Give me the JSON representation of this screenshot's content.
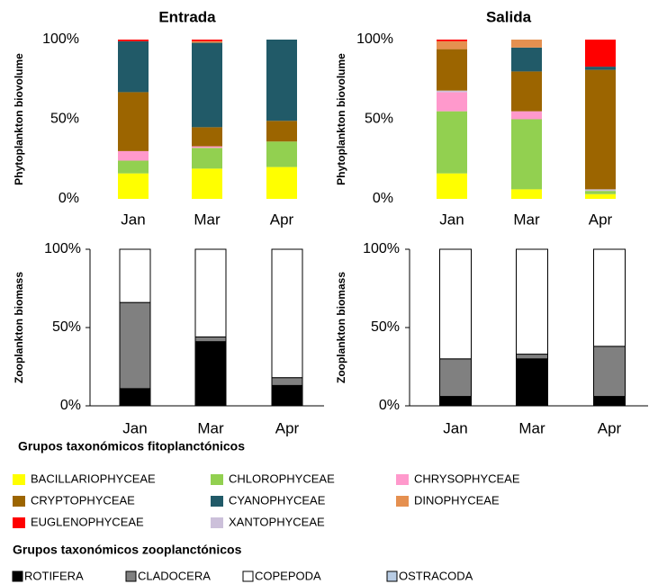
{
  "chart_data": [
    {
      "type": "stacked_bar",
      "title": "Entrada",
      "title_color": "#ff0000",
      "y_label": "Phytoplankton biovolume",
      "categories": [
        "Jan",
        "Mar",
        "Apr"
      ],
      "ylim": [
        0,
        100
      ],
      "yticks": [
        {
          "value": 0,
          "label": "0%"
        },
        {
          "value": 50,
          "label": "50%"
        },
        {
          "value": 100,
          "label": "100%"
        }
      ],
      "series": [
        {
          "name": "BACILLARIOPHYCEAE",
          "color": "#ffff00",
          "values": [
            16,
            19,
            20
          ]
        },
        {
          "name": "CHLOROPHYCEAE",
          "color": "#92d050",
          "values": [
            8,
            13,
            16
          ]
        },
        {
          "name": "CHRYSOPHYCEAE",
          "color": "#ff99cc",
          "values": [
            6,
            1,
            0
          ]
        },
        {
          "name": "CRYPTOPHYCEAE",
          "color": "#9c6500",
          "values": [
            37,
            12,
            13
          ]
        },
        {
          "name": "CYANOPHYCEAE",
          "color": "#215a68",
          "values": [
            32,
            53,
            51
          ]
        },
        {
          "name": "DINOPHYCEAE",
          "color": "#e59050",
          "values": [
            0,
            1,
            0
          ]
        },
        {
          "name": "EUGLENOPHYCEAE",
          "color": "#ff0000",
          "values": [
            1,
            1,
            0
          ]
        },
        {
          "name": "XANTOPHYCEAE",
          "color": "#ccc0da",
          "values": [
            0,
            0,
            0
          ]
        }
      ]
    },
    {
      "type": "stacked_bar",
      "title": "Salida",
      "title_color": "#33cccc",
      "y_label": "Phytoplankton biovolume",
      "categories": [
        "Jan",
        "Mar",
        "Apr"
      ],
      "ylim": [
        0,
        100
      ],
      "yticks": [
        {
          "value": 0,
          "label": "0%"
        },
        {
          "value": 50,
          "label": "50%"
        },
        {
          "value": 100,
          "label": "100%"
        }
      ],
      "series": [
        {
          "name": "BACILLARIOPHYCEAE",
          "color": "#ffff00",
          "values": [
            16,
            6,
            3
          ]
        },
        {
          "name": "CHLOROPHYCEAE",
          "color": "#92d050",
          "values": [
            39,
            44,
            2
          ]
        },
        {
          "name": "CHRYSOPHYCEAE",
          "color": "#ff99cc",
          "values": [
            12,
            5,
            0
          ]
        },
        {
          "name": "XANTOPHYCEAE",
          "color": "#ccc0da",
          "values": [
            1,
            0,
            1
          ]
        },
        {
          "name": "CRYPTOPHYCEAE",
          "color": "#9c6500",
          "values": [
            26,
            25,
            75
          ]
        },
        {
          "name": "CYANOPHYCEAE",
          "color": "#215a68",
          "values": [
            0,
            15,
            2
          ]
        },
        {
          "name": "DINOPHYCEAE",
          "color": "#e59050",
          "values": [
            5,
            5,
            0
          ]
        },
        {
          "name": "EUGLENOPHYCEAE",
          "color": "#ff0000",
          "values": [
            1,
            0,
            17
          ]
        }
      ]
    },
    {
      "type": "stacked_bar",
      "y_label": "Zooplankton biomass",
      "categories": [
        "Jan",
        "Mar",
        "Apr"
      ],
      "ylim": [
        0,
        100
      ],
      "yticks": [
        {
          "value": 0,
          "label": "0%"
        },
        {
          "value": 50,
          "label": "50%"
        },
        {
          "value": 100,
          "label": "100%"
        }
      ],
      "series": [
        {
          "name": "ROTIFERA",
          "color": "#000000",
          "values": [
            11,
            41,
            13
          ]
        },
        {
          "name": "CLADOCERA",
          "color": "#808080",
          "values": [
            55,
            3,
            5
          ]
        },
        {
          "name": "COPEPODA",
          "color": "#ffffff",
          "values": [
            34,
            56,
            82
          ]
        },
        {
          "name": "OSTRACODA",
          "color": "#b8cce4",
          "values": [
            0,
            0,
            0
          ]
        }
      ]
    },
    {
      "type": "stacked_bar",
      "y_label": "Zooplankton biomass",
      "categories": [
        "Jan",
        "Mar",
        "Apr"
      ],
      "ylim": [
        0,
        100
      ],
      "yticks": [
        {
          "value": 0,
          "label": "0%"
        },
        {
          "value": 50,
          "label": "50%"
        },
        {
          "value": 100,
          "label": "100%"
        }
      ],
      "series": [
        {
          "name": "ROTIFERA",
          "color": "#000000",
          "values": [
            6,
            30,
            6
          ]
        },
        {
          "name": "CLADOCERA",
          "color": "#808080",
          "values": [
            24,
            3,
            32
          ]
        },
        {
          "name": "COPEPODA",
          "color": "#ffffff",
          "values": [
            70,
            67,
            62
          ]
        },
        {
          "name": "OSTRACODA",
          "color": "#b8cce4",
          "values": [
            0,
            0,
            0
          ]
        }
      ]
    }
  ],
  "legend_titles": [
    "Grupos taxonómicos fitoplanctónicos",
    "Grupos taxonómicos zooplanctónicos"
  ]
}
